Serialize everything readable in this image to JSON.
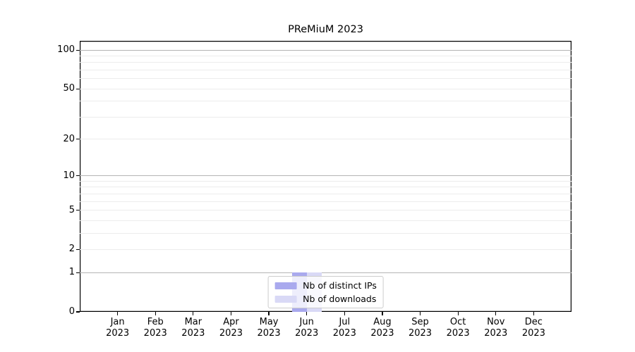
{
  "chart_data": {
    "type": "bar",
    "title": "PReMiuM 2023",
    "categories": [
      "Jan",
      "Feb",
      "Mar",
      "Apr",
      "May",
      "Jun",
      "Jul",
      "Aug",
      "Sep",
      "Oct",
      "Nov",
      "Dec"
    ],
    "category_year": "2023",
    "series": [
      {
        "name": "Nb of distinct IPs",
        "color": "#a9a9ee",
        "values": [
          0,
          0,
          0,
          0,
          0,
          1,
          0,
          0,
          0,
          0,
          0,
          0
        ]
      },
      {
        "name": "Nb of downloads",
        "color": "#d9d9f6",
        "values": [
          0,
          0,
          0,
          0,
          0,
          1,
          0,
          0,
          0,
          0,
          0,
          0
        ]
      }
    ],
    "y_scale": "log10(1+x)",
    "ylim": [
      0,
      118
    ],
    "y_tick_values": [
      100,
      50,
      20,
      10,
      5,
      2,
      1,
      0
    ],
    "y_tick_labels": [
      "100",
      "50",
      "20",
      "10",
      "5",
      "2",
      "1",
      "0"
    ],
    "y_major_gridline_values": [
      1,
      10,
      100
    ],
    "y_minor_gridline_values": [
      2,
      3,
      4,
      5,
      6,
      7,
      8,
      9,
      20,
      30,
      40,
      50,
      60,
      70,
      80,
      90
    ],
    "grid": true,
    "legend_position": "lower center",
    "bar_value_jun_distinct_ips": 1,
    "bar_value_jun_downloads": 1
  },
  "colors": {
    "background": "#ffffff",
    "spine": "#000000",
    "major_gridline": "#b4b4b4",
    "minor_gridline": "#ececec",
    "legend_border": "#cccccc",
    "text": "#000000"
  }
}
